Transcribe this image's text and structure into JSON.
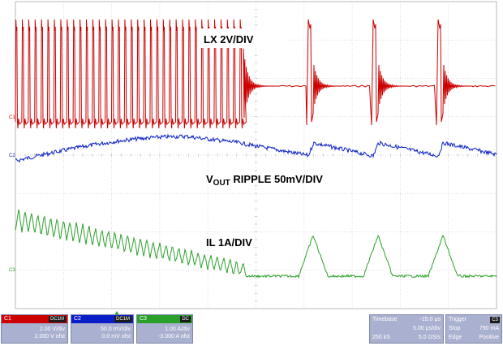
{
  "labels": {
    "lx": "LX 2V/DIV",
    "vout_v": "V",
    "vout_sub": "OUT",
    "vout_rest": " RIPPLE 50mV/DIV",
    "il": "IL 1A/DIV"
  },
  "channel_markers": {
    "c1": "C1",
    "c2": "C2",
    "c3": "C3"
  },
  "colors": {
    "c1": "#cc0000",
    "c2": "#0a1ec8",
    "c3": "#2aa02a",
    "panel": "#aab0cf"
  },
  "channels": [
    {
      "name": "C1",
      "badge": "DC1M",
      "scale": "2.00 V/div",
      "offset": "2.000 V ofst",
      "color": "#cc0000"
    },
    {
      "name": "C2",
      "badge": "DC1M",
      "scale": "50.0 mV/div",
      "offset": "0.0 mV ofst",
      "color": "#0a1ec8"
    },
    {
      "name": "C3",
      "badge": "DC",
      "scale": "1.00 A/div",
      "offset": "-3.000 A ofst",
      "color": "#2aa02a"
    }
  ],
  "timebase": {
    "label": "Timebase",
    "delay": "-15.0 µs",
    "per_div": "5.00 µs/div",
    "samples": "250 kS",
    "rate": "5.0 GS/s"
  },
  "trigger": {
    "label": "Trigger",
    "channel": "C3",
    "mode": "Stop",
    "level": "790 mA",
    "type": "Edge",
    "slope": "Positive"
  }
}
